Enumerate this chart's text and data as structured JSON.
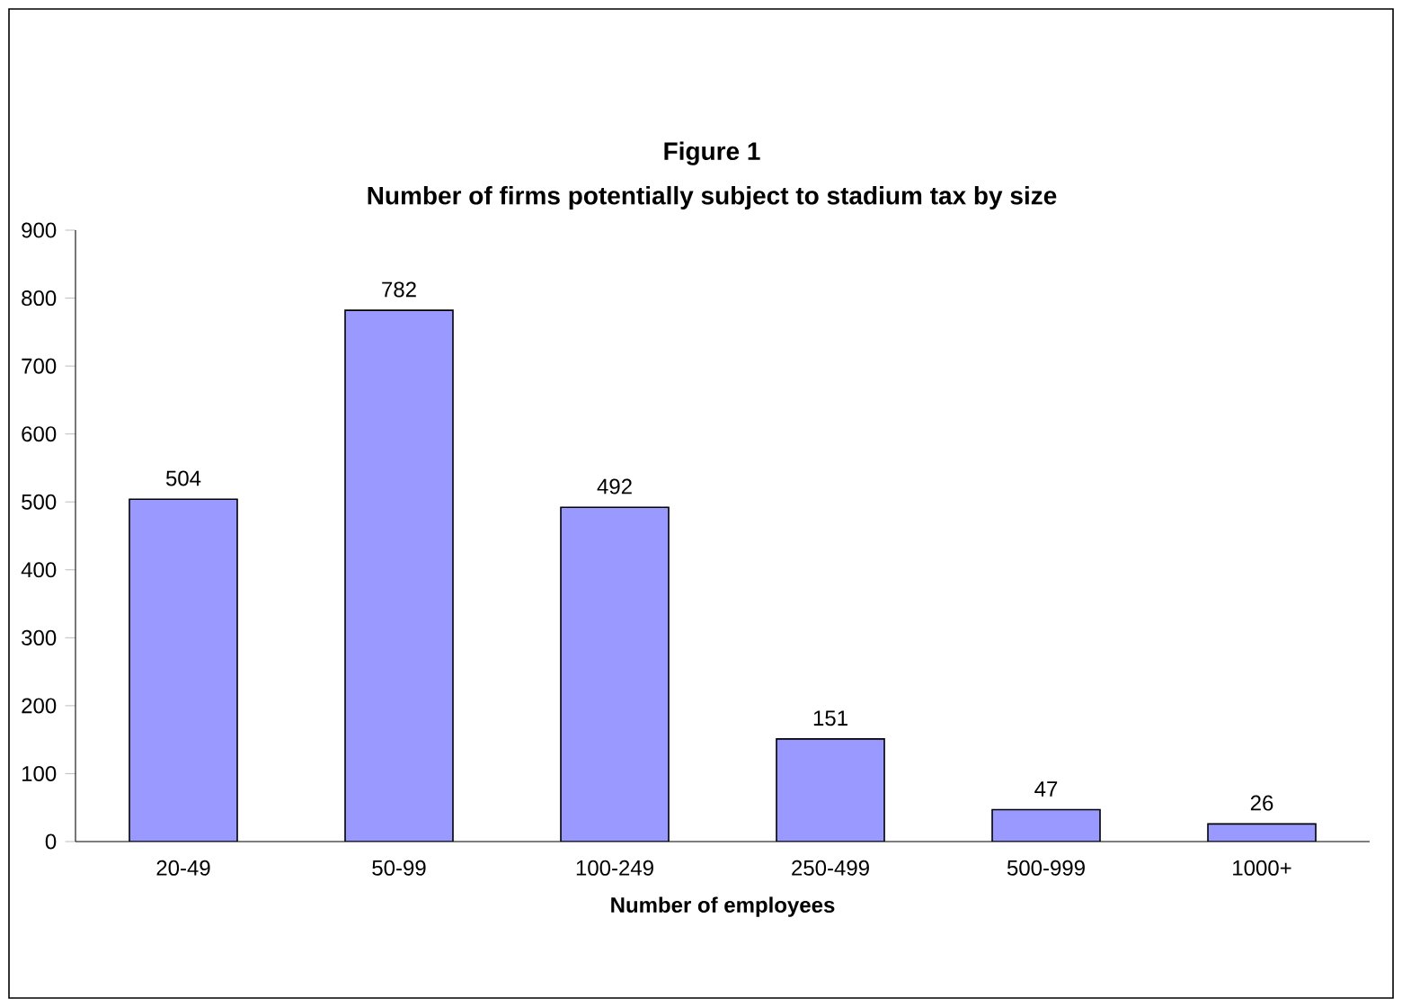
{
  "chart_data": {
    "type": "bar",
    "title": "Figure 1",
    "subtitle": "Number of firms potentially subject to stadium tax by size",
    "xlabel": "Number of employees",
    "categories": [
      "20-49",
      "50-99",
      "100-249",
      "250-499",
      "500-999",
      "1000+"
    ],
    "values": [
      504,
      782,
      492,
      151,
      47,
      26
    ],
    "color": "#9999ff",
    "ylim": [
      0,
      900
    ],
    "yticks": [
      0,
      100,
      200,
      300,
      400,
      500,
      600,
      700,
      800,
      900
    ],
    "data_labels": true
  }
}
